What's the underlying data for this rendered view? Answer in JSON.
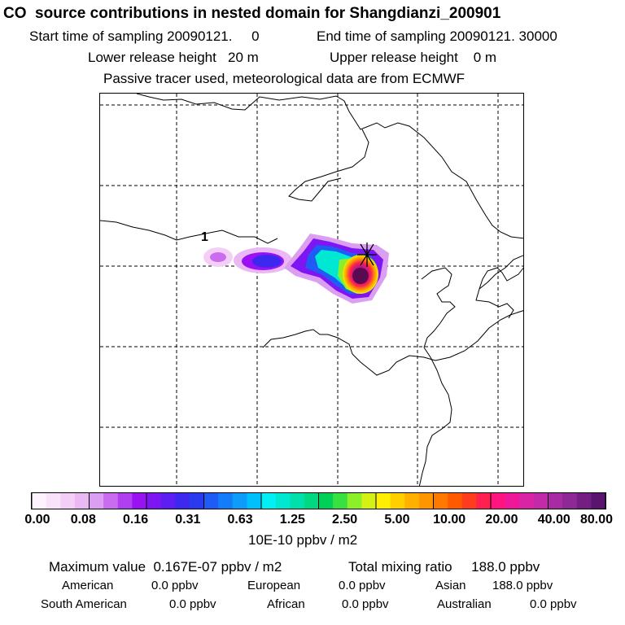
{
  "header": {
    "title": "CO  source contributions in nested domain for Shangdianzi_200901",
    "start": "Start time of sampling 20090121.     0",
    "end": "End time of sampling 20090121. 30000",
    "lower": "Lower release height   20 m",
    "upper": "Upper release height    0 m",
    "note": "Passive tracer used, meteorological data are from ECMWF"
  },
  "map": {
    "contour_label": "1",
    "receptor_marker": "plus-star-marker",
    "colors": {
      "border": "#000000",
      "plume_core": "#5a0a50"
    }
  },
  "colorbar": {
    "tick_labels": [
      "0.00",
      "0.08",
      "0.16",
      "0.31",
      "0.63",
      "1.25",
      "2.50",
      "5.00",
      "10.00",
      "20.00",
      "40.00",
      "80.00"
    ],
    "colors": [
      "#fdf3ff",
      "#f9e3fb",
      "#f3cff7",
      "#eab8f3",
      "#dc9ef0",
      "#c96cf0",
      "#b13ff2",
      "#9a12f4",
      "#7e15f3",
      "#5e1ef1",
      "#3c28ee",
      "#2a3af0",
      "#1e5cf5",
      "#137cf8",
      "#0d9cf9",
      "#00c0fb",
      "#00f0f6",
      "#00e8d2",
      "#00e0ac",
      "#00d882",
      "#00d058",
      "#38e040",
      "#8cf028",
      "#d4f014",
      "#ffef00",
      "#ffd000",
      "#ffb000",
      "#ff9600",
      "#ff7800",
      "#ff5a00",
      "#ff3c1e",
      "#ff2050",
      "#ff1480",
      "#f0189a",
      "#da24a6",
      "#c22aaa",
      "#a82aa4",
      "#8e2896",
      "#741e84",
      "#5a1470"
    ],
    "unit": "10E-10 ppbv / m2"
  },
  "summary": {
    "maximum": "Maximum value  0.167E-07 ppbv / m2",
    "total": "Total mixing ratio     188.0 ppbv",
    "regions": [
      {
        "name": "American",
        "value": "0.0 ppbv"
      },
      {
        "name": "European",
        "value": "0.0 ppbv"
      },
      {
        "name": "Asian",
        "value": "188.0 ppbv"
      },
      {
        "name": "South American",
        "value": "0.0 ppbv"
      },
      {
        "name": "African",
        "value": "0.0 ppbv"
      },
      {
        "name": "Australian",
        "value": "0.0 ppbv"
      }
    ]
  }
}
